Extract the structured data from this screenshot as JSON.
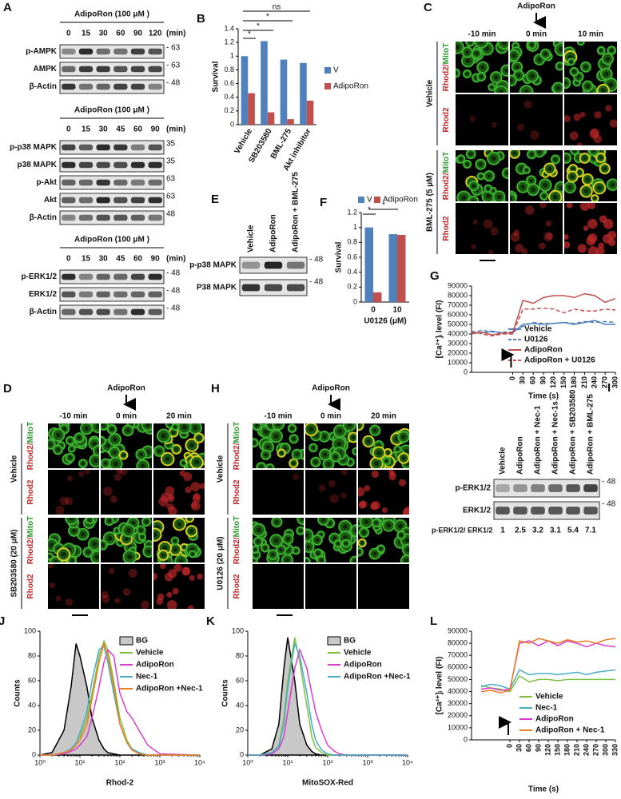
{
  "chart_data": [
    {
      "type": "bar",
      "panel": "B",
      "ylabel": "Survival",
      "categories": [
        "Vehicle",
        "SB203580",
        "BML-275",
        "Akt inhibitor"
      ],
      "series": [
        {
          "name": "V",
          "color": "#4f81bd",
          "values": [
            1.0,
            1.22,
            0.95,
            0.9
          ]
        },
        {
          "name": "AdipoRon",
          "color": "#c0504d",
          "values": [
            0.46,
            0.18,
            0.08,
            0.35
          ]
        }
      ],
      "ylim": [
        0,
        1.4
      ],
      "yticks": [
        0,
        0.2,
        0.4,
        0.6,
        0.8,
        1,
        1.2,
        1.4
      ],
      "annotations": [
        "*",
        "*",
        "*",
        "ns"
      ]
    },
    {
      "type": "bar",
      "panel": "F",
      "ylabel": "Survival",
      "xlabel": "U0126 (μM)",
      "categories": [
        "0",
        "10"
      ],
      "series": [
        {
          "name": "V",
          "color": "#4f81bd",
          "values": [
            1.0,
            0.91
          ]
        },
        {
          "name": "AdipoRon",
          "color": "#c0504d",
          "values": [
            0.13,
            0.9
          ]
        }
      ],
      "ylim": [
        0,
        1.2
      ],
      "yticks": [
        0,
        0.2,
        0.4,
        0.6,
        0.8,
        1,
        1.2
      ],
      "annotations": [
        "*",
        "*"
      ]
    },
    {
      "type": "line",
      "panel": "G",
      "ylabel": "[Ca²⁺]ᵢ level (FI)",
      "xlabel": "Time (s)",
      "x": [
        -120,
        -90,
        -60,
        -30,
        0,
        30,
        60,
        90,
        120,
        150,
        180,
        210,
        240,
        270,
        300
      ],
      "series": [
        {
          "name": "Vehicle",
          "color": "#4f81bd",
          "dash": false,
          "values": [
            42000,
            41000,
            43000,
            41000,
            41000,
            50000,
            51000,
            50000,
            51000,
            52000,
            50000,
            52000,
            54000,
            50000,
            50000
          ]
        },
        {
          "name": "U0126",
          "color": "#4f81bd",
          "dash": true,
          "values": [
            41000,
            44000,
            42000,
            42000,
            42000,
            48000,
            52000,
            51000,
            51000,
            52000,
            51000,
            53000,
            52000,
            53000,
            52000
          ]
        },
        {
          "name": "AdipoRon",
          "color": "#c0504d",
          "dash": false,
          "values": [
            40000,
            42000,
            39000,
            41000,
            41000,
            75000,
            72000,
            78000,
            80000,
            80000,
            78000,
            82000,
            80000,
            73000,
            77000
          ]
        },
        {
          "name": "AdipoRon + U0126",
          "color": "#c0504d",
          "dash": true,
          "values": [
            43000,
            40000,
            38000,
            40000,
            40000,
            66000,
            66000,
            67000,
            66000,
            62000,
            66000,
            64000,
            64000,
            66000,
            65000
          ]
        }
      ],
      "xlim": [
        -120,
        300
      ],
      "xticks": [
        0,
        30,
        60,
        90,
        120,
        150,
        180,
        210,
        240,
        270,
        300
      ],
      "ylim": [
        0,
        90000
      ],
      "yticks": [
        0,
        10000,
        20000,
        30000,
        40000,
        50000,
        60000,
        70000,
        80000,
        90000
      ]
    },
    {
      "type": "line",
      "panel": "J",
      "ylabel": "Counts",
      "xlabel": "Rhod-2",
      "xscale": "log",
      "x": [
        1,
        2,
        4,
        6,
        8,
        10,
        15,
        20,
        30,
        40,
        50,
        70,
        100,
        150,
        200,
        300,
        500,
        1000,
        10000
      ],
      "series": [
        {
          "name": "BG",
          "color": "#000000",
          "fill": "#c8c8c8",
          "values": [
            0,
            2,
            20,
            55,
            90,
            80,
            55,
            30,
            12,
            5,
            2,
            1,
            0,
            0,
            0,
            0,
            0,
            0,
            0
          ]
        },
        {
          "name": "Vehicle",
          "color": "#7dc242",
          "values": [
            0,
            0,
            2,
            5,
            10,
            15,
            30,
            50,
            80,
            92,
            85,
            60,
            30,
            12,
            5,
            2,
            0,
            0,
            0
          ]
        },
        {
          "name": "AdipoRon",
          "color": "#d63fcf",
          "values": [
            0,
            0,
            1,
            3,
            5,
            8,
            15,
            30,
            55,
            75,
            85,
            80,
            50,
            35,
            30,
            20,
            8,
            1,
            0
          ]
        },
        {
          "name": "Nec-1",
          "color": "#4bacc6",
          "values": [
            0,
            0,
            2,
            5,
            10,
            18,
            35,
            60,
            85,
            88,
            75,
            50,
            25,
            10,
            5,
            2,
            0,
            0,
            0
          ]
        },
        {
          "name": "AdipoRon +Nec-1",
          "color": "#f07c22",
          "values": [
            0,
            0,
            2,
            4,
            8,
            12,
            25,
            45,
            75,
            90,
            80,
            55,
            25,
            10,
            4,
            1,
            0,
            0,
            0
          ]
        }
      ],
      "xlim": [
        1,
        10000
      ],
      "xticks": [
        {
          "value": 1,
          "label": "10⁰"
        },
        {
          "value": 10,
          "label": "10¹"
        },
        {
          "value": 100,
          "label": "10²"
        },
        {
          "value": 1000,
          "label": "10³"
        },
        {
          "value": 10000,
          "label": "10⁴"
        }
      ],
      "ylim": [
        0,
        100
      ],
      "yticks": [
        0,
        20,
        40,
        60,
        80,
        100
      ]
    },
    {
      "type": "line",
      "panel": "K",
      "ylabel": "Counts",
      "xlabel": "MitoSOX-Red",
      "xscale": "log",
      "x": [
        1,
        2,
        4,
        6,
        8,
        10,
        15,
        20,
        30,
        40,
        50,
        70,
        100,
        150,
        200,
        300,
        500,
        1000,
        10000
      ],
      "series": [
        {
          "name": "BG",
          "color": "#000000",
          "fill": "#c8c8c8",
          "values": [
            0,
            0,
            5,
            25,
            70,
            95,
            60,
            25,
            8,
            3,
            1,
            0,
            0,
            0,
            0,
            0,
            0,
            0,
            0
          ]
        },
        {
          "name": "Vehicle",
          "color": "#7dc242",
          "values": [
            0,
            0,
            2,
            8,
            30,
            60,
            95,
            75,
            40,
            15,
            6,
            2,
            0,
            0,
            0,
            0,
            0,
            0,
            0
          ]
        },
        {
          "name": "AdipoRon",
          "color": "#d63fcf",
          "values": [
            0,
            0,
            1,
            5,
            15,
            35,
            70,
            85,
            70,
            50,
            35,
            20,
            8,
            3,
            1,
            0,
            0,
            0,
            0
          ]
        },
        {
          "name": "AdipoRon +Nec-1",
          "color": "#4bacc6",
          "values": [
            0,
            0,
            2,
            7,
            25,
            55,
            90,
            80,
            50,
            25,
            12,
            4,
            1,
            0,
            0,
            0,
            0,
            0,
            0
          ]
        }
      ],
      "xlim": [
        1,
        10000
      ],
      "xticks": [
        {
          "value": 1,
          "label": "10⁰"
        },
        {
          "value": 10,
          "label": "10¹"
        },
        {
          "value": 100,
          "label": "10²"
        },
        {
          "value": 1000,
          "label": "10³"
        },
        {
          "value": 10000,
          "label": "10⁴"
        }
      ],
      "ylim": [
        0,
        100
      ],
      "yticks": [
        0,
        20,
        40,
        60,
        80,
        100
      ]
    },
    {
      "type": "line",
      "panel": "L",
      "ylabel": "[Ca²⁺]ᵢ level (FI)",
      "xlabel": "Time (s)",
      "x": [
        -90,
        -60,
        -30,
        0,
        30,
        60,
        90,
        120,
        150,
        180,
        210,
        240,
        270,
        300,
        330
      ],
      "series": [
        {
          "name": "Vehicle",
          "color": "#7dc242",
          "values": [
            45000,
            43000,
            42000,
            40000,
            53000,
            48000,
            50000,
            50000,
            49000,
            50000,
            50000,
            50000,
            50000,
            50000,
            50000
          ]
        },
        {
          "name": "Nec-1",
          "color": "#4bacc6",
          "values": [
            44000,
            46000,
            45000,
            42000,
            58000,
            54000,
            55000,
            55000,
            54000,
            55000,
            56000,
            54000,
            56000,
            57000,
            58000
          ]
        },
        {
          "name": "AdipoRon",
          "color": "#d63fcf",
          "values": [
            42000,
            43000,
            41000,
            42000,
            80000,
            82000,
            78000,
            82000,
            78000,
            82000,
            80000,
            77000,
            80000,
            78000,
            77000
          ]
        },
        {
          "name": "AdipoRon + Nec-1",
          "color": "#f07c22",
          "values": [
            40000,
            41000,
            39000,
            41000,
            82000,
            80000,
            84000,
            82000,
            80000,
            83000,
            81000,
            82000,
            80000,
            83000,
            84000
          ]
        }
      ],
      "xlim": [
        -120,
        330
      ],
      "xticks": [
        0,
        30,
        60,
        90,
        120,
        150,
        180,
        210,
        240,
        270,
        300,
        330
      ],
      "ylim": [
        0,
        90000
      ],
      "yticks": [
        0,
        10000,
        20000,
        30000,
        40000,
        50000,
        60000,
        70000,
        80000,
        90000
      ]
    }
  ],
  "panels": {
    "A": {
      "letter": "A",
      "groups": [
        {
          "treatment": "AdipoRon (100 μM )",
          "times": [
            "0",
            "15",
            "30",
            "60",
            "90",
            "120"
          ],
          "unit": "(min)",
          "rows": [
            {
              "label": "p-AMPK",
              "mw": "- 63"
            },
            {
              "label": "AMPK",
              "mw": "- 63"
            },
            {
              "label": "β-Actin",
              "mw": "- 48"
            }
          ]
        },
        {
          "treatment": "AdipoRon (100 μM )",
          "times": [
            "0",
            "15",
            "30",
            "45",
            "60",
            "90"
          ],
          "unit": "(min)",
          "rows": [
            {
              "label": "p-p38 MAPK",
              "mw": "35"
            },
            {
              "label": "p38 MAPK",
              "mw": "35"
            },
            {
              "label": "p-Akt",
              "mw": "63"
            },
            {
              "label": "Akt",
              "mw": "63"
            },
            {
              "label": "β-Actin",
              "mw": "48"
            }
          ]
        },
        {
          "treatment": "AdipoRon (100 μM )",
          "times": [
            "0",
            "15",
            "30",
            "45",
            "60",
            "90"
          ],
          "unit": "(min)",
          "rows": [
            {
              "label": "p-ERK1/2",
              "mw": "- 48"
            },
            {
              "label": "ERK1/2",
              "mw": "- 48"
            },
            {
              "label": "β-Actin",
              "mw": "- 48"
            }
          ]
        }
      ]
    },
    "C": {
      "letter": "C",
      "treatment": "AdipoRon",
      "times": [
        "-10 min",
        "0 min",
        "10 min"
      ],
      "groups": [
        {
          "label": "Vehicle",
          "rows": [
            {
              "red": "Rhod2/",
              "green": "MitoT"
            },
            {
              "red": "Rhod2"
            }
          ]
        },
        {
          "label": "BML-275 (5 μM)",
          "rows": [
            {
              "red": "Rhod2/",
              "green": "MitoT"
            },
            {
              "red": "Rhod2"
            }
          ]
        }
      ]
    },
    "D": {
      "letter": "D",
      "treatment": "AdipoRon",
      "times": [
        "-10 min",
        "0 min",
        "20 min"
      ],
      "groups": [
        {
          "label": "Vehicle",
          "rows": [
            {
              "red": "Rhod2/",
              "green": "MitoT"
            },
            {
              "red": "Rhod2"
            }
          ]
        },
        {
          "label": "SB203580 (20 μM)",
          "rows": [
            {
              "red": "Rhod2/",
              "green": "MitoT"
            },
            {
              "red": "Rhod2"
            }
          ]
        }
      ]
    },
    "H": {
      "letter": "H",
      "treatment": "AdipoRon",
      "times": [
        "-10 min",
        "0 min",
        "20 min"
      ],
      "groups": [
        {
          "label": "Vehicle",
          "rows": [
            {
              "red": "Rhod2/",
              "green": "MitoT"
            },
            {
              "red": "Rhod2"
            }
          ]
        },
        {
          "label": "U0126 (20 μM)",
          "rows": [
            {
              "red": "Rhod2/",
              "green": "MitoT"
            },
            {
              "red": "Rhod2"
            }
          ]
        }
      ]
    },
    "E": {
      "letter": "E",
      "lanes": [
        "Vehicle",
        "AdipoRon",
        "AdipoRon + BML-275"
      ],
      "rows": [
        {
          "label": "p-p38 MAPK",
          "mw": "- 48"
        },
        {
          "label": "P38 MAPK",
          "mw": "- 48"
        }
      ]
    },
    "I": {
      "letter": "I",
      "lanes": [
        "Vehicle",
        "AdipoRon",
        "AdipoRon + Nec-1",
        "AdipoRon + Nec-1s",
        "AdipoRon + SB203580",
        "AdipoRon + BML-275"
      ],
      "rows": [
        {
          "label": "p-ERK1/2",
          "mw": "- 48"
        },
        {
          "label": "ERK1/2",
          "mw": "- 48"
        }
      ],
      "ratio_label": "p-ERK1/2/ ERK1/2",
      "ratios": [
        1,
        2.5,
        3.2,
        3.1,
        5.4,
        7.1
      ]
    }
  }
}
